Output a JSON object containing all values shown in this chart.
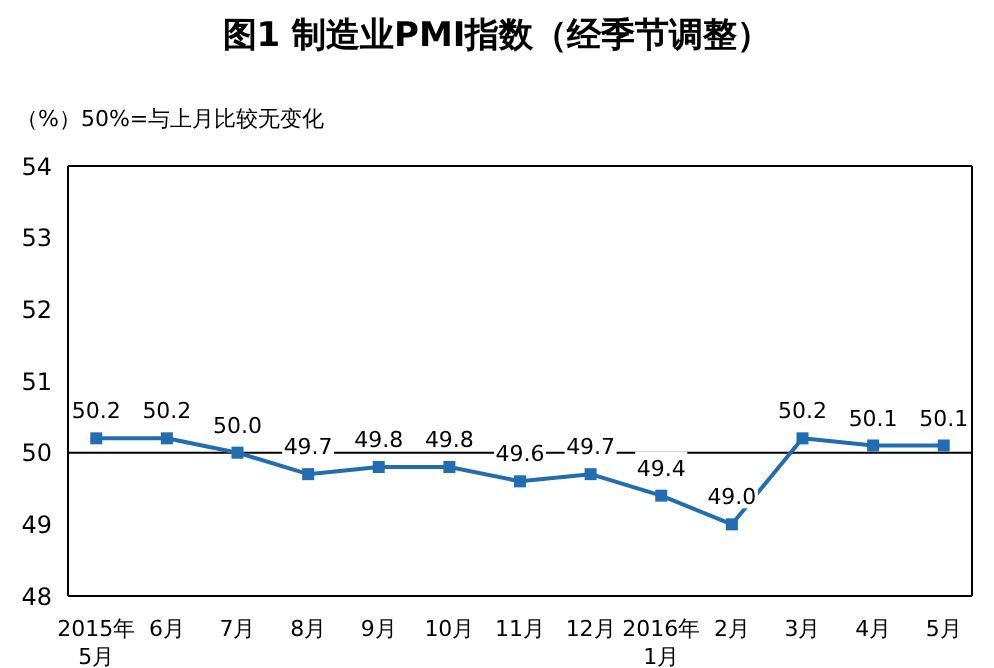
{
  "chart_data": {
    "type": "line",
    "title": "图1  制造业PMI指数（经季节调整）",
    "ylabel": "（%）",
    "annotations": [
      "50%=与上月比较无变化"
    ],
    "categories": [
      "2015年\n5月",
      "6月",
      "7月",
      "8月",
      "9月",
      "10月",
      "11月",
      "12月",
      "2016年\n1月",
      "2月",
      "3月",
      "4月",
      "5月"
    ],
    "series": [
      {
        "color": "#1f6db5",
        "values": [
          50.2,
          50.2,
          50.0,
          49.7,
          49.8,
          49.8,
          49.6,
          49.7,
          49.4,
          49.0,
          50.2,
          50.1,
          50.1
        ],
        "value_labels": [
          "50.2",
          "50.2",
          "50.0",
          "49.7",
          "49.8",
          "49.8",
          "49.6",
          "49.7",
          "49.4",
          "49.0",
          "50.2",
          "50.1",
          "50.1"
        ]
      }
    ],
    "ylim": [
      48,
      54
    ],
    "yticks": [
      48,
      49,
      50,
      51,
      52,
      53,
      54
    ],
    "ref_lines": [
      {
        "axis": "y",
        "value": 50,
        "color": "#000000"
      }
    ],
    "marker": "square",
    "line_style": "solid",
    "grid": false,
    "legend": false
  }
}
